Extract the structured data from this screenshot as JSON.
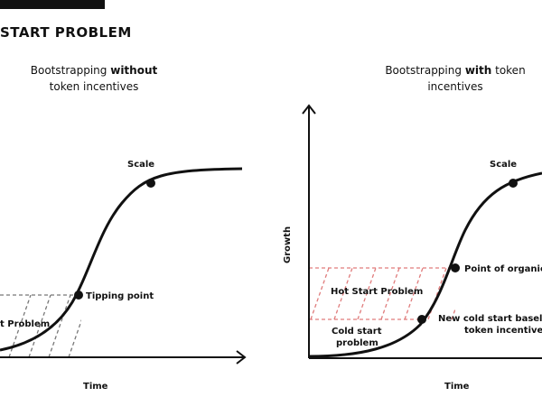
{
  "header": {
    "title": "START PROBLEM"
  },
  "left_panel": {
    "subtitle_pre": "Bootstrapping ",
    "subtitle_bold": "without",
    "subtitle_post": "token incentives",
    "x_label": "Time",
    "labels": {
      "scale": "Scale",
      "tipping_point": "Tipping point",
      "cold_start_partial": "t Problem"
    }
  },
  "right_panel": {
    "subtitle_pre": "Bootstrapping ",
    "subtitle_bold": "with",
    "subtitle_mid": " token",
    "subtitle_post": "incentives",
    "x_label": "Time",
    "y_label": "Growth",
    "labels": {
      "scale": "Scale",
      "organic_growth": "Point of organic g",
      "hot_start_problem": "Hot Start Problem",
      "cold_start_line1": "Cold start",
      "cold_start_line2": "problem",
      "baseline_line1": "New cold start baseline",
      "baseline_line2": "token incentives"
    }
  }
}
